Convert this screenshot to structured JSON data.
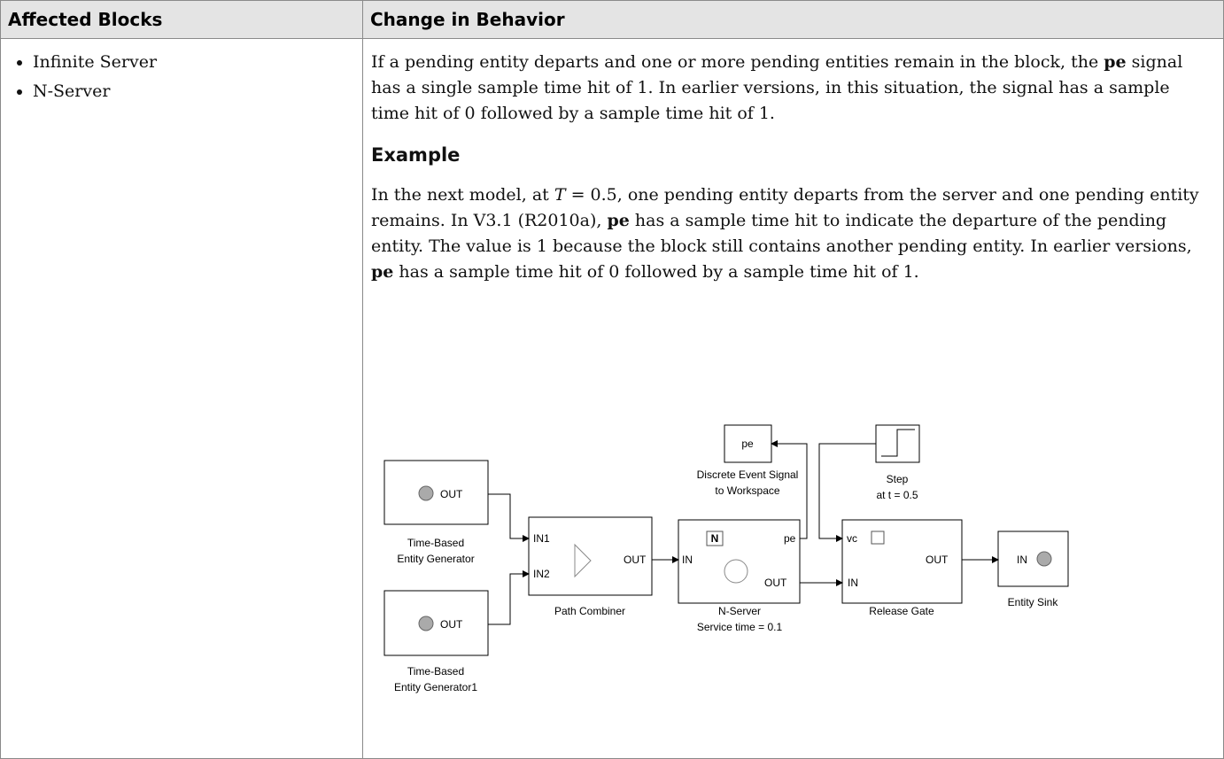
{
  "table": {
    "header": [
      "Affected Blocks",
      "Change in Behavior"
    ],
    "affected_blocks": [
      "Infinite Server",
      "N-Server"
    ],
    "paragraph1": [
      "If a pending entity departs and one or more pending entities remain in the block, the ",
      "pe",
      " signal has a single sample time hit of 1. In earlier versions, in this situation, the signal has a sample time hit of 0 followed by a sample time hit of 1."
    ],
    "example_heading": "Example",
    "paragraph2": [
      "In the next model, at ",
      "T",
      " = 0.5, one pending entity departs from the server and one pending entity remains. In V3.1 (R2010a), ",
      "pe",
      " has a sample time hit to indicate the departure of the pending entity. The value is 1 because the block still contains another pending entity. In earlier versions, ",
      "pe",
      " has a sample time hit of 0 followed by a sample time hit of 1."
    ]
  },
  "diagram": {
    "generator1": {
      "port": "OUT",
      "label": [
        "Time-Based",
        "Entity Generator"
      ]
    },
    "generator2": {
      "port": "OUT",
      "label": [
        "Time-Based",
        "Entity Generator1"
      ]
    },
    "path_combiner": {
      "ports": [
        "IN1",
        "IN2",
        "OUT"
      ],
      "label": "Path Combiner"
    },
    "n_server": {
      "ports": [
        "IN",
        "pe",
        "OUT"
      ],
      "icon": "N",
      "label": [
        "N-Server",
        "Service time = 0.1"
      ]
    },
    "workspace": {
      "text": "pe",
      "label": [
        "Discrete Event Signal",
        "to Workspace"
      ]
    },
    "step": {
      "label": [
        "Step",
        "at t = 0.5"
      ]
    },
    "release_gate": {
      "ports": [
        "vc",
        "IN",
        "OUT"
      ],
      "label": "Release Gate"
    },
    "entity_sink": {
      "port": "IN",
      "label": "Entity Sink"
    }
  }
}
